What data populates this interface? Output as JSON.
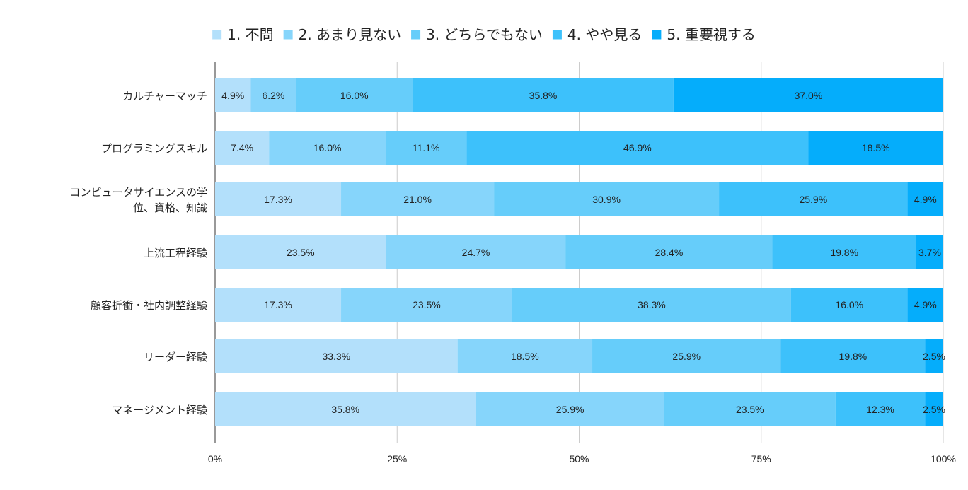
{
  "chart_data": {
    "type": "bar",
    "orientation": "horizontal",
    "stacked": "percent",
    "title": "",
    "xlabel": "",
    "ylabel": "",
    "xlim": [
      0,
      100
    ],
    "grid": true,
    "legend_position": "top",
    "x_ticks": [
      "0%",
      "25%",
      "50%",
      "75%",
      "100%"
    ],
    "categories": [
      [
        "カルチャーマッチ"
      ],
      [
        "プログラミングスキル"
      ],
      [
        "コンピュータサイエンスの学",
        "位、資格、知識"
      ],
      [
        "上流工程経験"
      ],
      [
        "顧客折衝・社内調整経験"
      ],
      [
        "リーダー経験"
      ],
      [
        "マネージメント経験"
      ]
    ],
    "series": [
      {
        "name": "1. 不問",
        "color": "#b3e0fb",
        "values": [
          4.9,
          7.4,
          17.3,
          23.5,
          17.3,
          33.3,
          35.8
        ],
        "labels": [
          "4.9%",
          "7.4%",
          "17.3%",
          "23.5%",
          "17.3%",
          "33.3%",
          "35.8%"
        ]
      },
      {
        "name": "2. あまり見ない",
        "color": "#86d5fb",
        "values": [
          6.2,
          16.0,
          21.0,
          24.7,
          23.5,
          18.5,
          25.9
        ],
        "labels": [
          "6.2%",
          "16.0%",
          "21.0%",
          "24.7%",
          "23.5%",
          "18.5%",
          "25.9%"
        ]
      },
      {
        "name": "3. どちらでもない",
        "color": "#66cdfa",
        "values": [
          16.0,
          11.1,
          30.9,
          28.4,
          38.3,
          25.9,
          23.5
        ],
        "labels": [
          "16.0%",
          "11.1%",
          "30.9%",
          "28.4%",
          "38.3%",
          "25.9%",
          "23.5%"
        ]
      },
      {
        "name": "4. やや見る",
        "color": "#3dc1fb",
        "values": [
          35.8,
          46.9,
          25.9,
          19.8,
          16.0,
          19.8,
          12.3
        ],
        "labels": [
          "35.8%",
          "46.9%",
          "25.9%",
          "19.8%",
          "16.0%",
          "19.8%",
          "12.3%"
        ]
      },
      {
        "name": "5. 重要視する",
        "color": "#05adfb",
        "values": [
          37.0,
          18.5,
          4.9,
          3.7,
          4.9,
          2.5,
          2.5
        ],
        "labels": [
          "37.0%",
          "18.5%",
          "4.9%",
          "3.7%",
          "4.9%",
          "2.5%",
          "2.5%"
        ]
      }
    ]
  }
}
